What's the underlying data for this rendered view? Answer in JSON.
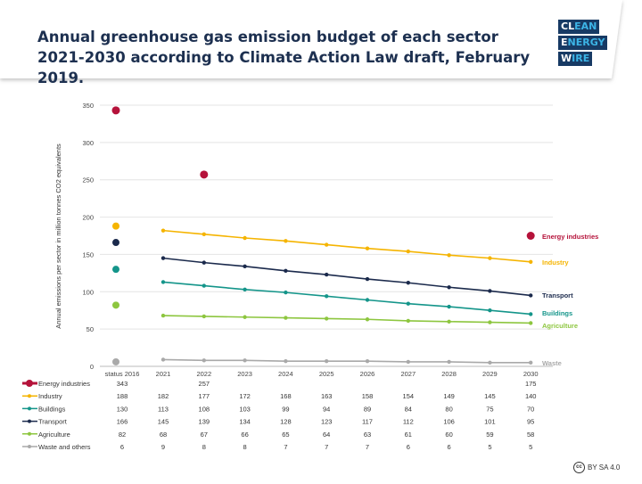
{
  "title": "Annual greenhouse gas emission budget of each sector 2021-2030 according to Climate Action Law draft, February 2019.",
  "logo": {
    "line1a": "CL",
    "line1b": "EAN",
    "line2a": "E",
    "line2b": "NERGY",
    "line3a": "W",
    "line3b": "IRE"
  },
  "license": {
    "icon": "cc-icon",
    "text": "BY SA 4.0",
    "symbol": "cc"
  },
  "chart_data": {
    "type": "line",
    "title": "Annual greenhouse gas emission budget of each sector 2021-2030 according to Climate Action Law draft, February 2019.",
    "ylabel": "Annual emissions per sector in million tonnes CO2 equivalents",
    "ylim": [
      0,
      350
    ],
    "yticks": [
      0,
      50,
      100,
      150,
      200,
      250,
      300,
      350
    ],
    "grid": true,
    "categories": [
      "status 2016",
      "2021",
      "2022",
      "2023",
      "2024",
      "2025",
      "2026",
      "2027",
      "2028",
      "2029",
      "2030"
    ],
    "series": [
      {
        "name": "Energy industries",
        "end_label": "Energy industries",
        "color": "#b5123a",
        "values": [
          343,
          null,
          257,
          null,
          null,
          null,
          null,
          null,
          null,
          null,
          175
        ]
      },
      {
        "name": "Industry",
        "end_label": "Industry",
        "color": "#f5b400",
        "values": [
          188,
          182,
          177,
          172,
          168,
          163,
          158,
          154,
          149,
          145,
          140
        ]
      },
      {
        "name": "Buildings",
        "end_label": "Buildings",
        "color": "#14958a",
        "values": [
          130,
          113,
          108,
          103,
          99,
          94,
          89,
          84,
          80,
          75,
          70
        ]
      },
      {
        "name": "Transport",
        "end_label": "Transport",
        "color": "#1b2a4c",
        "values": [
          166,
          145,
          139,
          134,
          128,
          123,
          117,
          112,
          106,
          101,
          95
        ]
      },
      {
        "name": "Agriculture",
        "end_label": "Agriculture",
        "color": "#8dc63f",
        "values": [
          82,
          68,
          67,
          66,
          65,
          64,
          63,
          61,
          60,
          59,
          58
        ]
      },
      {
        "name": "Waste and others",
        "end_label": "Waste",
        "color": "#a9a9a9",
        "values": [
          6,
          9,
          8,
          8,
          7,
          7,
          7,
          6,
          6,
          5,
          5
        ]
      }
    ]
  }
}
